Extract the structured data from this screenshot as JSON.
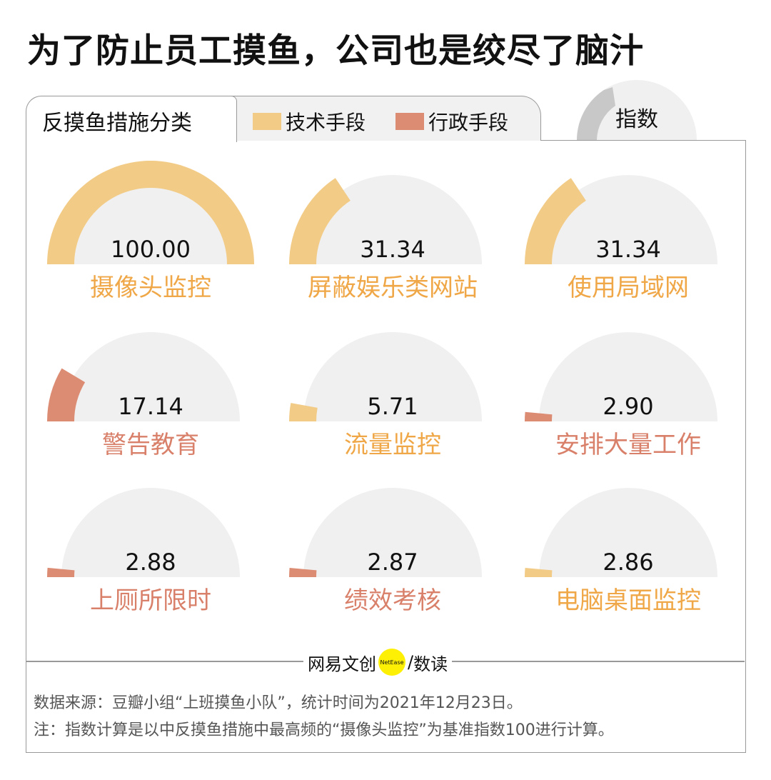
{
  "title": "为了防止员工摸鱼，公司也是绞尽了脑汁",
  "tab_label": "反摸鱼措施分类",
  "index_label": "指数",
  "legend": [
    {
      "name": "技术手段",
      "color": "#F2CB86",
      "label_color": "#EFA747"
    },
    {
      "name": "行政手段",
      "color": "#DD8C74",
      "label_color": "#D9806A"
    }
  ],
  "brand": {
    "name": "网易文创",
    "badge": "NetEase",
    "slash": "/",
    "sub": "数读"
  },
  "notes": [
    "数据来源：豆瓣小组“上班摸鱼小队”，统计时间为2021年12月23日。",
    "注：指数计算是以中反摸鱼措施中最高频的“摄像头监控”为基准指数100进行计算。"
  ],
  "chart_data": {
    "type": "gauge",
    "max": 100,
    "categories": [
      "摄像头监控",
      "屏蔽娱乐类网站",
      "使用局域网",
      "警告教育",
      "流量监控",
      "安排大量工作",
      "上厕所限时",
      "绩效考核",
      "电脑桌面监控"
    ],
    "values": [
      100,
      31.34,
      31.34,
      17.14,
      5.71,
      2.9,
      2.88,
      2.87,
      2.86
    ],
    "value_labels": [
      "100.00",
      "31.34",
      "31.34",
      "17.14",
      "5.71",
      "2.90",
      "2.88",
      "2.87",
      "2.86"
    ],
    "group": [
      "技术手段",
      "技术手段",
      "技术手段",
      "行政手段",
      "技术手段",
      "行政手段",
      "行政手段",
      "行政手段",
      "技术手段"
    ],
    "background_color": "#F0F0F0"
  }
}
